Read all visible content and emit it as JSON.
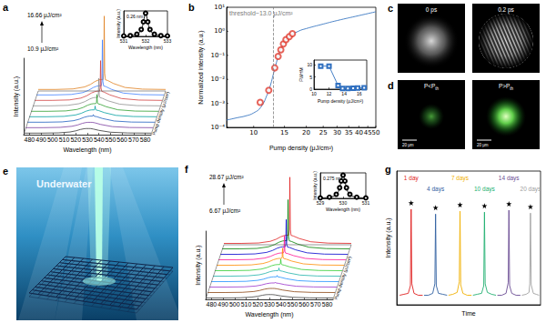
{
  "chart_data": [
    {
      "panel": "a",
      "type": "line",
      "xlabel": "Wavelength (nm)",
      "ylabel": "Intensity (a.u.)",
      "zlabel": "Pump density (μJ/cm²)",
      "xlim": [
        475,
        585
      ],
      "xticks": [
        480,
        490,
        500,
        510,
        520,
        530,
        540,
        550,
        560,
        570,
        580
      ],
      "ylim": [
        0,
        1
      ],
      "tick_labels": "x",
      "annotations": [
        "16.66 μJ/cm²",
        "10.9 μJ/cm²"
      ],
      "x": [
        475,
        490,
        505,
        515,
        520,
        524,
        527,
        529,
        531,
        531.6,
        532,
        532.4,
        533,
        535,
        540,
        550,
        565,
        585
      ],
      "series": [
        {
          "color": "#333333",
          "values": [
            0.02,
            0.02,
            0.023,
            0.035,
            0.05,
            0.068,
            0.077,
            0.08,
            0.08,
            0.08,
            0.08,
            0.08,
            0.079,
            0.074,
            0.056,
            0.032,
            0.022,
            0.02
          ]
        },
        {
          "color": "#7b3fa0",
          "values": [
            0.02,
            0.02,
            0.024,
            0.038,
            0.055,
            0.076,
            0.087,
            0.09,
            0.09,
            0.09,
            0.09,
            0.09,
            0.089,
            0.083,
            0.062,
            0.034,
            0.022,
            0.02
          ]
        },
        {
          "color": "#2060c0",
          "values": [
            0.02,
            0.02,
            0.024,
            0.04,
            0.06,
            0.084,
            0.096,
            0.1,
            0.1,
            0.102,
            0.12,
            0.102,
            0.098,
            0.092,
            0.068,
            0.036,
            0.022,
            0.02
          ]
        },
        {
          "color": "#00a0a0",
          "values": [
            0.02,
            0.02,
            0.025,
            0.043,
            0.065,
            0.092,
            0.106,
            0.11,
            0.11,
            0.115,
            0.16,
            0.115,
            0.108,
            0.101,
            0.074,
            0.038,
            0.023,
            0.02
          ]
        },
        {
          "color": "#30a030",
          "values": [
            0.02,
            0.02,
            0.025,
            0.045,
            0.07,
            0.1,
            0.115,
            0.12,
            0.12,
            0.132,
            0.24,
            0.132,
            0.118,
            0.11,
            0.08,
            0.04,
            0.023,
            0.02
          ]
        },
        {
          "color": "#909090",
          "values": [
            0.02,
            0.02,
            0.026,
            0.048,
            0.075,
            0.108,
            0.125,
            0.13,
            0.13,
            0.155,
            0.38,
            0.155,
            0.128,
            0.119,
            0.086,
            0.042,
            0.023,
            0.02
          ]
        },
        {
          "color": "#d04040",
          "values": [
            0.02,
            0.02,
            0.026,
            0.05,
            0.08,
            0.116,
            0.134,
            0.14,
            0.14,
            0.18,
            0.54,
            0.18,
            0.138,
            0.128,
            0.092,
            0.044,
            0.024,
            0.02
          ]
        },
        {
          "color": "#4080ff",
          "values": [
            0.02,
            0.02,
            0.026,
            0.05,
            0.08,
            0.116,
            0.134,
            0.14,
            0.14,
            0.2,
            0.74,
            0.2,
            0.138,
            0.128,
            0.092,
            0.044,
            0.024,
            0.02
          ]
        },
        {
          "color": "#e08020",
          "values": [
            0.02,
            0.02,
            0.027,
            0.053,
            0.085,
            0.124,
            0.144,
            0.15,
            0.15,
            0.233,
            0.98,
            0.233,
            0.147,
            0.137,
            0.098,
            0.046,
            0.024,
            0.02
          ]
        }
      ],
      "inset": {
        "type": "line",
        "xlabel": "Wavelength (nm)",
        "ylabel": "Intensity (a.u.)",
        "xlim": [
          531,
          533
        ],
        "xticks": [
          531,
          532,
          533
        ],
        "ylim": [
          0,
          1.1
        ],
        "tick_labels": "x",
        "annotations": [
          "0.26 nm"
        ],
        "x": [
          531,
          531.3,
          531.6,
          531.8,
          531.9,
          532,
          532.1,
          532.2,
          532.4,
          532.7,
          533
        ],
        "series": [
          {
            "color": "#000000",
            "marker": "circle",
            "values": [
              0.02,
              0.033,
              0.095,
              0.297,
              0.628,
              1,
              0.628,
              0.297,
              0.095,
              0.033,
              0.02
            ]
          }
        ]
      }
    },
    {
      "panel": "b",
      "type": "line",
      "log": true,
      "xlabel": "Pump density (μJ/cm²)",
      "ylabel": "Normalized intensity (a.u.)",
      "xlim": [
        7,
        50
      ],
      "xticks": [
        10,
        15,
        20,
        25,
        30,
        35,
        40,
        45,
        50
      ],
      "ylim": [
        0.0001,
        10
      ],
      "yticks": [
        {
          "value": 0.0001,
          "label": "10⁻⁴"
        },
        {
          "value": 0.001,
          "label": "10⁻³"
        },
        {
          "value": 0.01,
          "label": "10⁻²"
        },
        {
          "value": 0.1,
          "label": "10⁻¹"
        },
        {
          "value": 1,
          "label": "10⁰"
        },
        {
          "value": 10,
          "label": "10¹"
        }
      ],
      "threshold": 13.0,
      "annotations": [
        "threshold~13.0 μJ/cm²"
      ],
      "series": [
        {
          "type": "scatter",
          "color": "#e03c31",
          "marker": "circle",
          "x": [
            10.9,
            12.2,
            13.2,
            13.8,
            14.3,
            14.8,
            15.3,
            16,
            16.66
          ],
          "values": [
            0.0011,
            0.0035,
            0.03,
            0.09,
            0.17,
            0.3,
            0.45,
            0.6,
            0.8
          ]
        },
        {
          "type": "line",
          "color": "#3b78c2",
          "x": [
            7,
            8,
            9,
            10,
            11,
            12,
            12.5,
            13,
            13.5,
            14,
            15,
            16,
            18,
            20,
            25,
            30,
            40,
            50
          ],
          "values": [
            0.0002,
            0.00025,
            0.0003,
            0.0004,
            0.0007,
            0.0025,
            0.006,
            0.018,
            0.05,
            0.12,
            0.35,
            0.6,
            1.0,
            1.3,
            2.0,
            2.8,
            4.5,
            6.5
          ]
        }
      ],
      "inset": {
        "type": "line",
        "xlabel": "Pump density (μJ/cm²)",
        "ylabel": "FWHM",
        "xlim": [
          10,
          17
        ],
        "xticks": [
          10,
          12,
          14,
          16
        ],
        "ylim": [
          0,
          12
        ],
        "yticks": [
          0,
          5,
          10
        ],
        "x": [
          10.9,
          12,
          13.2,
          13.8,
          14.5,
          15.2,
          15.8,
          16.66
        ],
        "series": [
          {
            "color": "#3070c0",
            "marker": "square",
            "values": [
              9.5,
              9.5,
              1.5,
              0.3,
              0.3,
              0.4,
              0.5,
              0.6
            ]
          }
        ]
      }
    },
    {
      "panel": "f",
      "type": "line",
      "xlabel": "Wavelength (nm)",
      "ylabel": "Intensity (a.u.)",
      "zlabel": "Pump density (μJ/cm²)",
      "xlim": [
        475,
        585
      ],
      "xticks": [
        480,
        490,
        500,
        510,
        520,
        530,
        540,
        550,
        560,
        570,
        580
      ],
      "ylim": [
        0,
        1
      ],
      "tick_labels": "x",
      "annotations": [
        "28.67 μJ/cm²",
        "6.67 μJ/cm²"
      ],
      "x": [
        475,
        490,
        505,
        515,
        520,
        524,
        527,
        529,
        531,
        531.6,
        532,
        532.4,
        533,
        535,
        540,
        550,
        565,
        585
      ],
      "series": [
        {
          "color": "#404040",
          "values": [
            0.02,
            0.02,
            0.023,
            0.033,
            0.045,
            0.06,
            0.068,
            0.07,
            0.07,
            0.07,
            0.07,
            0.07,
            0.069,
            0.065,
            0.05,
            0.03,
            0.022,
            0.02
          ]
        },
        {
          "color": "#8b4513",
          "values": [
            0.02,
            0.02,
            0.023,
            0.035,
            0.05,
            0.068,
            0.077,
            0.08,
            0.08,
            0.08,
            0.08,
            0.08,
            0.079,
            0.074,
            0.056,
            0.032,
            0.022,
            0.02
          ]
        },
        {
          "color": "#9932cc",
          "values": [
            0.02,
            0.02,
            0.023,
            0.035,
            0.05,
            0.068,
            0.077,
            0.08,
            0.08,
            0.081,
            0.09,
            0.081,
            0.079,
            0.074,
            0.056,
            0.032,
            0.022,
            0.02
          ]
        },
        {
          "color": "#1e90ff",
          "values": [
            0.02,
            0.02,
            0.024,
            0.038,
            0.055,
            0.076,
            0.087,
            0.09,
            0.09,
            0.092,
            0.11,
            0.092,
            0.089,
            0.083,
            0.062,
            0.034,
            0.022,
            0.02
          ]
        },
        {
          "color": "#20b2aa",
          "values": [
            0.02,
            0.02,
            0.024,
            0.04,
            0.06,
            0.084,
            0.096,
            0.1,
            0.1,
            0.104,
            0.14,
            0.104,
            0.098,
            0.092,
            0.068,
            0.036,
            0.022,
            0.02
          ]
        },
        {
          "color": "#32cd32",
          "values": [
            0.02,
            0.02,
            0.025,
            0.043,
            0.065,
            0.092,
            0.106,
            0.11,
            0.11,
            0.118,
            0.19,
            0.118,
            0.108,
            0.101,
            0.074,
            0.038,
            0.023,
            0.02
          ]
        },
        {
          "color": "#ff8c00",
          "values": [
            0.02,
            0.02,
            0.025,
            0.045,
            0.07,
            0.1,
            0.115,
            0.12,
            0.12,
            0.135,
            0.27,
            0.135,
            0.118,
            0.11,
            0.08,
            0.04,
            0.023,
            0.02
          ]
        },
        {
          "color": "#ff1493",
          "values": [
            0.02,
            0.02,
            0.025,
            0.045,
            0.07,
            0.1,
            0.115,
            0.12,
            0.12,
            0.145,
            0.37,
            0.145,
            0.118,
            0.11,
            0.08,
            0.04,
            0.023,
            0.02
          ]
        },
        {
          "color": "#0000cd",
          "values": [
            0.02,
            0.02,
            0.026,
            0.048,
            0.075,
            0.108,
            0.125,
            0.13,
            0.13,
            0.17,
            0.53,
            0.17,
            0.128,
            0.119,
            0.086,
            0.042,
            0.023,
            0.02
          ]
        },
        {
          "color": "#008000",
          "values": [
            0.02,
            0.02,
            0.026,
            0.05,
            0.08,
            0.116,
            0.134,
            0.14,
            0.14,
            0.2,
            0.74,
            0.2,
            0.138,
            0.128,
            0.092,
            0.044,
            0.024,
            0.02
          ]
        },
        {
          "color": "#e02020",
          "values": [
            0.02,
            0.02,
            0.026,
            0.05,
            0.08,
            0.116,
            0.134,
            0.14,
            0.14,
            0.225,
            0.99,
            0.225,
            0.138,
            0.128,
            0.092,
            0.044,
            0.024,
            0.02
          ]
        }
      ],
      "inset": {
        "type": "line",
        "xlabel": "Wavelength (nm)",
        "ylabel": "Intensity (a.u.)",
        "xlim": [
          529,
          531
        ],
        "xticks": [
          529,
          530,
          531
        ],
        "ylim": [
          0,
          1.1
        ],
        "tick_labels": "x",
        "annotations": [
          "0.275 nm"
        ],
        "x": [
          529,
          529.4,
          529.7,
          529.85,
          529.92,
          530,
          530.08,
          530.15,
          530.3,
          530.6,
          531
        ],
        "series": [
          {
            "color": "#000000",
            "marker": "circle",
            "values": [
              0.019,
              0.05,
              0.174,
              0.457,
              0.747,
              1,
              0.747,
              0.457,
              0.174,
              0.05,
              0.019
            ]
          }
        ]
      }
    },
    {
      "panel": "g",
      "type": "line",
      "xlabel": "Time",
      "ylabel": "Intensity (a.u.)",
      "xlim": [
        0,
        100
      ],
      "ylim": [
        0,
        1.4
      ],
      "tick_labels": false,
      "series": [
        {
          "name": "1 day",
          "color": "#e02020",
          "marker": "star",
          "x": [
            2,
            5,
            8,
            9.5,
            10,
            10.5,
            12,
            15,
            18
          ],
          "values": [
            0.1,
            0.11,
            0.12,
            0.2,
            1.0,
            0.22,
            0.12,
            0.1,
            0.1
          ]
        },
        {
          "name": "4 days",
          "color": "#3060a0",
          "marker": "star",
          "x": [
            19,
            22,
            25,
            26.5,
            27,
            27.5,
            29,
            32,
            35
          ],
          "values": [
            0.1,
            0.1,
            0.12,
            0.22,
            0.95,
            0.2,
            0.12,
            0.11,
            0.1
          ]
        },
        {
          "name": "7 days",
          "color": "#f0b000",
          "marker": "star",
          "x": [
            36,
            39,
            42,
            43.5,
            44,
            44.5,
            46,
            49,
            52
          ],
          "values": [
            0.1,
            0.11,
            0.13,
            0.24,
            0.98,
            0.21,
            0.12,
            0.1,
            0.1
          ]
        },
        {
          "name": "10 days",
          "color": "#20b070",
          "marker": "star",
          "x": [
            53,
            56,
            59,
            60.5,
            61,
            61.5,
            63,
            66,
            69
          ],
          "values": [
            0.1,
            0.11,
            0.12,
            0.2,
            0.97,
            0.22,
            0.13,
            0.11,
            0.1
          ]
        },
        {
          "name": "14 days",
          "color": "#6a4c93",
          "marker": "star",
          "x": [
            70,
            73,
            76,
            77.5,
            78,
            78.5,
            80,
            83,
            86
          ],
          "values": [
            0.1,
            0.1,
            0.12,
            0.23,
            0.99,
            0.2,
            0.12,
            0.1,
            0.1
          ]
        },
        {
          "name": "20 days",
          "color": "#a0a0a0",
          "marker": "star",
          "x": [
            87,
            90,
            92,
            92.5,
            93,
            93.5,
            95,
            97,
            99
          ],
          "values": [
            0.1,
            0.11,
            0.13,
            0.22,
            0.96,
            0.21,
            0.12,
            0.11,
            0.1
          ]
        }
      ]
    }
  ],
  "images": [
    {
      "panel": "c",
      "frames": [
        {
          "label": "0 ps"
        },
        {
          "label": "0.2 ps"
        }
      ]
    },
    {
      "panel": "d",
      "frames": [
        {
          "label": "P<P",
          "label_sub": "th",
          "scale_bar": "20 μm"
        },
        {
          "label": "P>P",
          "label_sub": "th",
          "scale_bar": "20 μm"
        }
      ]
    },
    {
      "panel": "e",
      "label": "Underwater"
    }
  ]
}
